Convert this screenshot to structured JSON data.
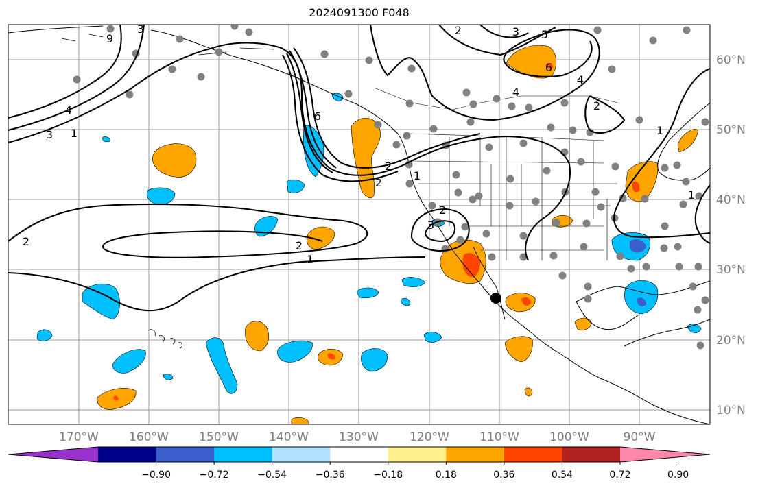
{
  "title": "2024091300 F048",
  "lon_labels": [
    "170°W",
    "160°W",
    "150°W",
    "140°W",
    "130°W",
    "120°W",
    "110°W",
    "100°W",
    "90°W"
  ],
  "lat_labels": [
    "60°N",
    "50°N",
    "40°N",
    "30°N",
    "20°N",
    "10°N"
  ],
  "colorbar": {
    "colors": [
      "#9932cc",
      "#00008b",
      "#3a5fcd",
      "#00bfff",
      "#b0e2ff",
      "#ffffff",
      "#fff08c",
      "#ffa500",
      "#ff4500",
      "#b22222",
      "#ff88aa"
    ],
    "tick_labels": [
      "−0.90",
      "−0.72",
      "−0.54",
      "−0.36",
      "−0.18",
      "0.18",
      "0.36",
      "0.54",
      "0.72",
      "0.90"
    ]
  },
  "contour_labels": [
    "3",
    "2",
    "4",
    "1",
    "9",
    "6",
    "5",
    "4",
    "6",
    "2",
    "3",
    "1",
    "1",
    "2",
    "2",
    "2",
    "1",
    "3",
    "2",
    "2",
    "1",
    "1"
  ],
  "colors": {
    "positive": "#ffa500",
    "strong_positive": "#ff4500",
    "negative": "#00bfff",
    "strong_negative": "#3a5fcd",
    "gray_dot": "#808080"
  }
}
